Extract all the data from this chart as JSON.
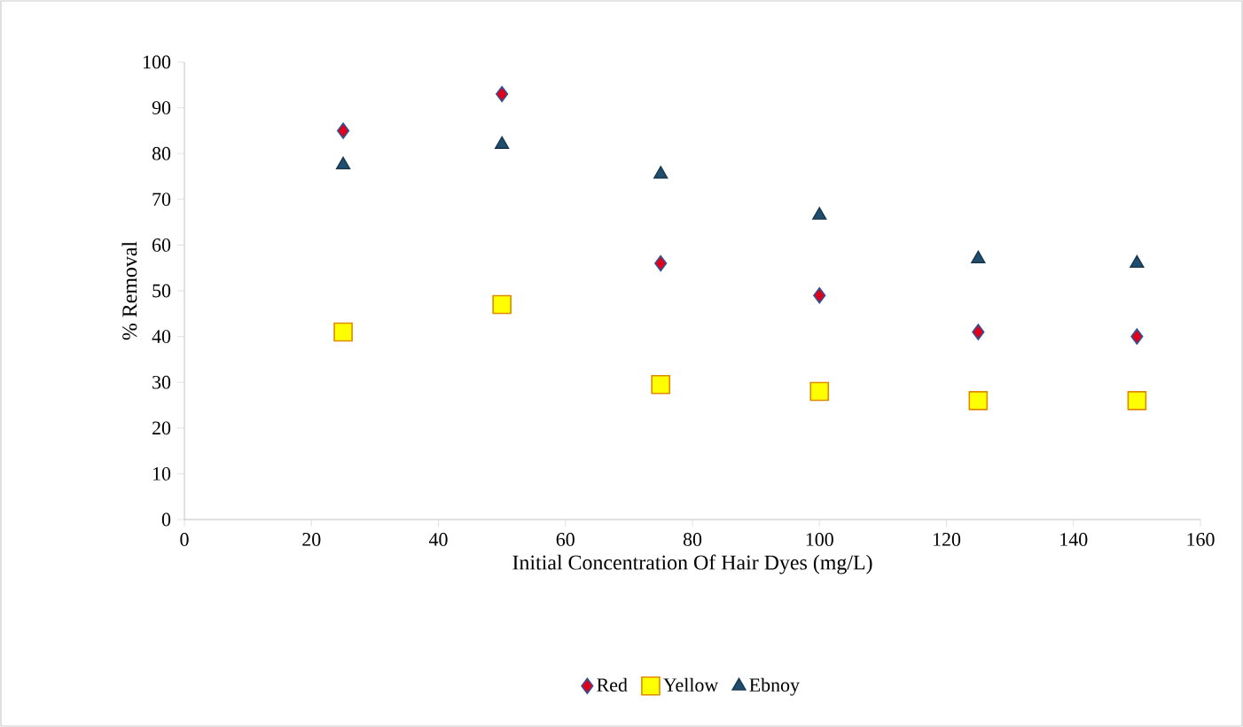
{
  "chart_data": {
    "type": "scatter",
    "xlabel": "Initial Concentration Of Hair Dyes (mg/L)",
    "ylabel": "% Removal",
    "xlim": [
      0,
      160
    ],
    "xticks": [
      0,
      20,
      40,
      60,
      80,
      100,
      120,
      140,
      160
    ],
    "ylim": [
      0,
      100
    ],
    "yticks": [
      0,
      10,
      20,
      30,
      40,
      50,
      60,
      70,
      80,
      90,
      100
    ],
    "x": [
      25,
      50,
      75,
      100,
      125,
      150
    ],
    "series": [
      {
        "name": "Red",
        "color": "#e0001b",
        "marker": "diamond",
        "values": [
          85,
          93,
          56,
          49,
          41,
          40
        ]
      },
      {
        "name": "Yellow",
        "color": "#ffff00",
        "marker": "square",
        "values": [
          41,
          47,
          29.5,
          28,
          26,
          26
        ]
      },
      {
        "name": "Ebnoy",
        "color": "#1f4e6e",
        "marker": "triangle",
        "values": [
          77.5,
          82,
          75.5,
          66.5,
          57,
          56
        ]
      }
    ],
    "grid": false,
    "legend": "bottom"
  }
}
